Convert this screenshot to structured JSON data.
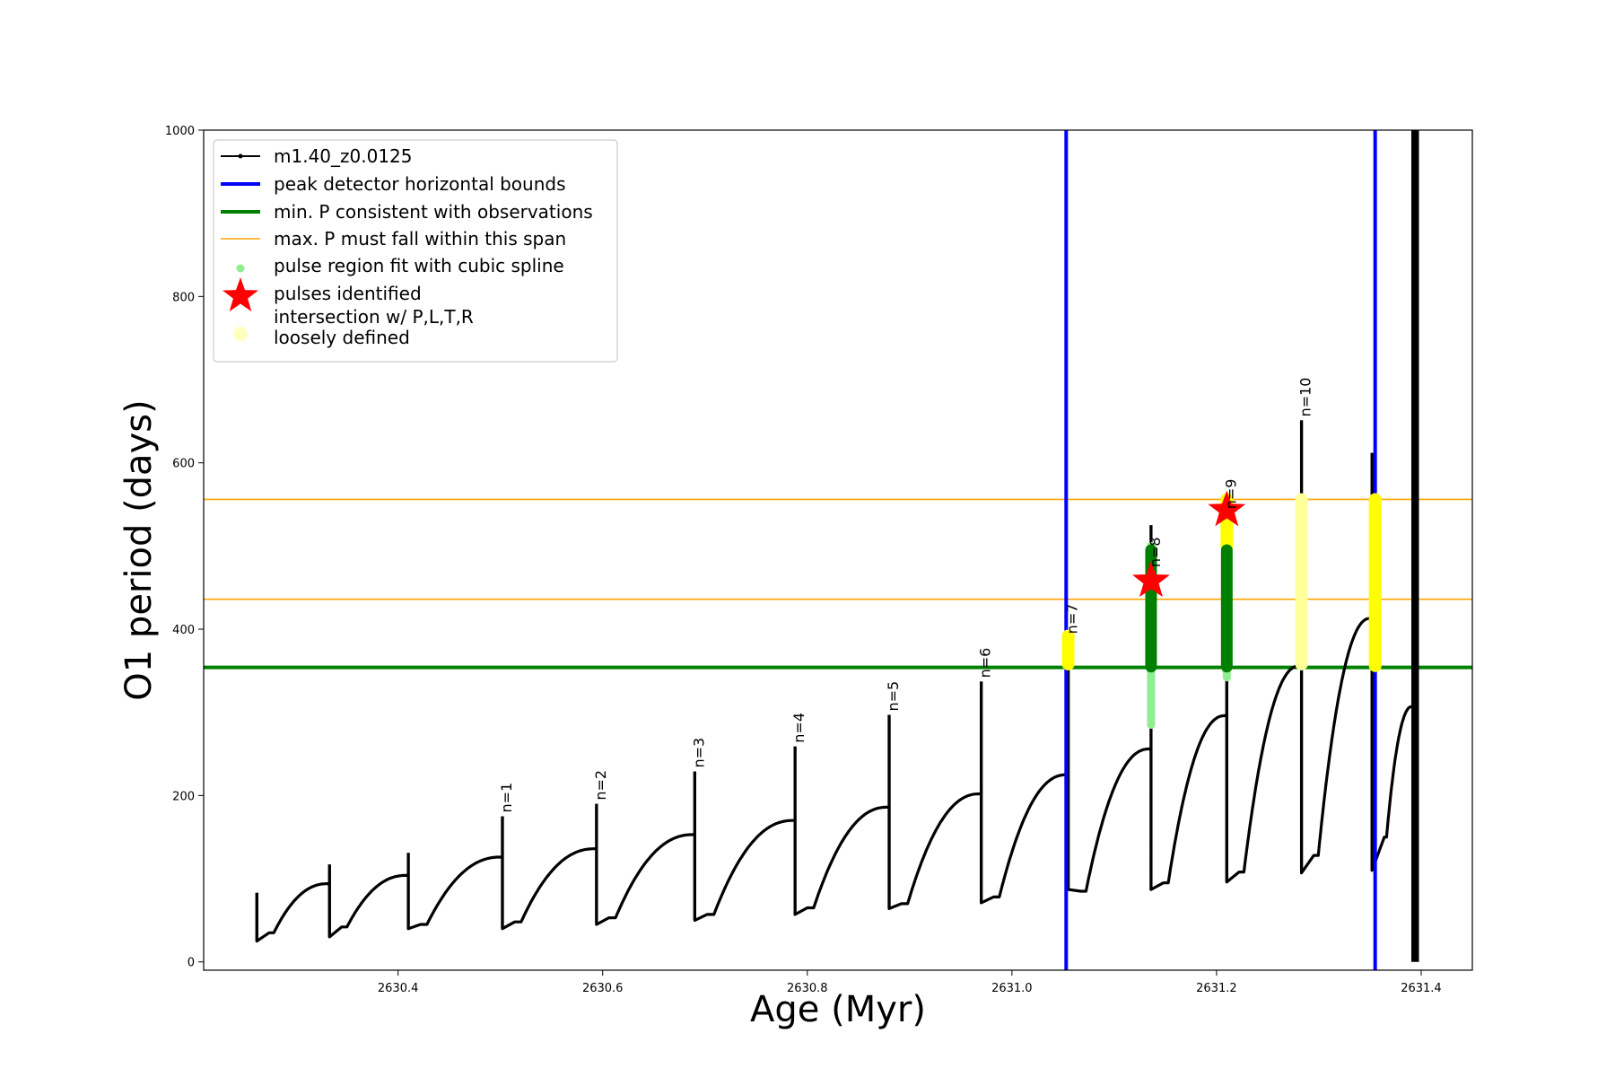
{
  "chart_data": {
    "type": "line",
    "xlabel": "Age (Myr)",
    "ylabel": "O1 period (days)",
    "xlim": [
      2630.21,
      2631.45
    ],
    "ylim": [
      -10,
      1000
    ],
    "xticks": [
      2630.4,
      2630.6,
      2630.8,
      2631.0,
      2631.2,
      2631.4
    ],
    "xtick_labels": [
      "2630.4",
      "2630.6",
      "2630.8",
      "2631.0",
      "2631.2",
      "2631.4"
    ],
    "yticks": [
      0,
      200,
      400,
      600,
      800,
      1000
    ],
    "ytick_labels": [
      "0",
      "200",
      "400",
      "600",
      "800",
      "1000"
    ],
    "legend_position": "upper-left",
    "legend": [
      {
        "label": "m1.40_z0.0125",
        "marker": "line-dot",
        "color": "#000000"
      },
      {
        "label": "peak detector horizontal bounds",
        "marker": "line",
        "color": "#0000ff"
      },
      {
        "label": "min. P consistent with observations",
        "marker": "line",
        "color": "#008000"
      },
      {
        "label": "max. P must fall within this span",
        "marker": "thin-line",
        "color": "#ffa500"
      },
      {
        "label": "pulse region fit with cubic spline",
        "marker": "dot",
        "color": "#90ee90"
      },
      {
        "label": "pulses identified",
        "marker": "star",
        "color": "#ff0000"
      },
      {
        "label": "intersection w/ P,L,T,R",
        "label2": "loosely defined",
        "marker": "big-dot",
        "color": "#ffffc0"
      }
    ],
    "vertical_bounds": {
      "x": [
        2631.053,
        2631.355
      ],
      "color": "#0000ff"
    },
    "min_period_line": {
      "y": 354,
      "color": "#008000"
    },
    "max_period_span": {
      "y": [
        436,
        556
      ],
      "color": "#ffa500"
    },
    "series": [
      {
        "name": "m1.40_z0.0125",
        "color": "#000000",
        "pulses": [
          {
            "x0": 2630.262,
            "x1": 2630.333,
            "low": 35,
            "plateau": 94,
            "spike": 83,
            "dip": 25
          },
          {
            "x0": 2630.333,
            "x1": 2630.41,
            "low": 42,
            "plateau": 104,
            "spike": 117,
            "dip": 30
          },
          {
            "x0": 2630.41,
            "x1": 2630.502,
            "low": 45,
            "plateau": 126,
            "spike": 131,
            "dip": 40
          },
          {
            "x0": 2630.502,
            "x1": 2630.594,
            "low": 48,
            "plateau": 136,
            "spike": 175,
            "dip": 40
          },
          {
            "x0": 2630.594,
            "x1": 2630.69,
            "low": 53,
            "plateau": 153,
            "spike": 190,
            "dip": 45
          },
          {
            "x0": 2630.69,
            "x1": 2630.788,
            "low": 57,
            "plateau": 170,
            "spike": 229,
            "dip": 50
          },
          {
            "x0": 2630.788,
            "x1": 2630.88,
            "low": 65,
            "plateau": 186,
            "spike": 259,
            "dip": 57
          },
          {
            "x0": 2630.88,
            "x1": 2630.97,
            "low": 70,
            "plateau": 202,
            "spike": 297,
            "dip": 64
          },
          {
            "x0": 2630.97,
            "x1": 2631.055,
            "low": 78,
            "plateau": 225,
            "spike": 337,
            "dip": 71
          },
          {
            "x0": 2631.055,
            "x1": 2631.136,
            "low": 85,
            "plateau": 256,
            "spike": 390,
            "dip": 87
          },
          {
            "x0": 2631.136,
            "x1": 2631.21,
            "low": 95,
            "plateau": 296,
            "spike": 525,
            "dip": 87
          },
          {
            "x0": 2631.21,
            "x1": 2631.283,
            "low": 108,
            "plateau": 356,
            "spike": 560,
            "dip": 96
          },
          {
            "x0": 2631.283,
            "x1": 2631.352,
            "low": 128,
            "plateau": 413,
            "spike": 651,
            "dip": 107
          },
          {
            "x0": 2631.352,
            "x1": 2631.393,
            "low": 150,
            "plateau": 307,
            "spike": 612,
            "dip": 110
          }
        ],
        "final_spike": {
          "x": 2631.393,
          "y_max": 1000,
          "y_end": 0
        }
      }
    ],
    "pulse_labels": [
      {
        "text": "n=1",
        "x": 2630.502,
        "y": 175
      },
      {
        "text": "n=2",
        "x": 2630.594,
        "y": 190
      },
      {
        "text": "n=3",
        "x": 2630.69,
        "y": 229
      },
      {
        "text": "n=4",
        "x": 2630.788,
        "y": 259
      },
      {
        "text": "n=5",
        "x": 2630.88,
        "y": 297
      },
      {
        "text": "n=6",
        "x": 2630.97,
        "y": 337
      },
      {
        "text": "n=7",
        "x": 2631.055,
        "y": 390
      },
      {
        "text": "n=8",
        "x": 2631.136,
        "y": 470
      },
      {
        "text": "n=9",
        "x": 2631.21,
        "y": 540
      },
      {
        "text": "n=10",
        "x": 2631.283,
        "y": 651
      }
    ],
    "spline_regions": [
      {
        "x": 2631.136,
        "y": [
          285,
          500
        ],
        "color": "#90ee90"
      },
      {
        "x": 2631.21,
        "y": [
          342,
          490
        ],
        "color": "#90ee90"
      }
    ],
    "fit_regions": [
      {
        "x": 2631.136,
        "y": [
          355,
          495
        ],
        "color": "#008000"
      },
      {
        "x": 2631.21,
        "y": [
          355,
          495
        ],
        "color": "#008000"
      }
    ],
    "intersection_regions": [
      {
        "x": 2631.055,
        "y": [
          358,
          392
        ],
        "color": "#ffff00"
      },
      {
        "x": 2631.21,
        "y": [
          500,
          556
        ],
        "color": "#ffff00"
      },
      {
        "x": 2631.283,
        "y": [
          358,
          556
        ],
        "color": "#ffff99"
      },
      {
        "x": 2631.355,
        "y": [
          356,
          556
        ],
        "color": "#ffff00"
      }
    ],
    "pulses_identified": [
      {
        "x": 2631.136,
        "y": 458
      },
      {
        "x": 2631.21,
        "y": 543
      }
    ]
  }
}
